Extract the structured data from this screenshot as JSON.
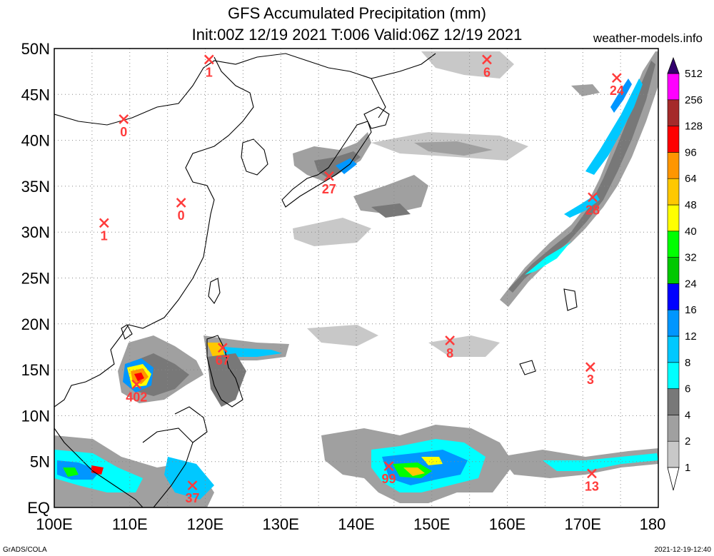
{
  "header": {
    "title": "GFS Accumulated Precipitation (mm)",
    "subtitle": "Init:00Z 12/19 2021 T:006 Valid:06Z 12/19 2021",
    "site": "weather-models.info"
  },
  "footer": {
    "left": "GrADS/COLA",
    "right": "2021-12-19-12:40"
  },
  "map": {
    "lat_labels": [
      "50N",
      "45N",
      "40N",
      "35N",
      "30N",
      "25N",
      "20N",
      "15N",
      "10N",
      "5N",
      "EQ"
    ],
    "lon_labels": [
      "100E",
      "110E",
      "120E",
      "130E",
      "140E",
      "150E",
      "160E",
      "170E",
      "180"
    ],
    "extent": {
      "lon_min": 100,
      "lon_max": 180,
      "lat_min": 0,
      "lat_max": 50
    }
  },
  "legend": {
    "levels": [
      "1",
      "2",
      "4",
      "6",
      "8",
      "12",
      "16",
      "24",
      "32",
      "40",
      "48",
      "64",
      "96",
      "128",
      "256",
      "512"
    ],
    "colors": [
      "#c8c8c8",
      "#a0a0a0",
      "#787878",
      "#00ffff",
      "#00c8ff",
      "#0096ff",
      "#0000ff",
      "#00c800",
      "#00ff00",
      "#ffff00",
      "#ffc800",
      "#ff9600",
      "#ff0000",
      "#a52a2a",
      "#ff00ff",
      "#c800ff",
      "#9600c8",
      "#64009a",
      "#32006e"
    ]
  },
  "markers": [
    {
      "lon": 120.5,
      "lat": 48.8,
      "value": "1"
    },
    {
      "lon": 157.3,
      "lat": 48.8,
      "value": "6"
    },
    {
      "lon": 174.5,
      "lat": 46.8,
      "value": "24"
    },
    {
      "lon": 109.2,
      "lat": 42.3,
      "value": "0"
    },
    {
      "lon": 136.4,
      "lat": 36.1,
      "value": "27"
    },
    {
      "lon": 171.3,
      "lat": 33.8,
      "value": "28"
    },
    {
      "lon": 116.8,
      "lat": 33.2,
      "value": "0"
    },
    {
      "lon": 106.6,
      "lat": 31.0,
      "value": "1"
    },
    {
      "lon": 152.4,
      "lat": 18.2,
      "value": "8"
    },
    {
      "lon": 122.3,
      "lat": 17.4,
      "value": "67"
    },
    {
      "lon": 171.0,
      "lat": 15.3,
      "value": "3"
    },
    {
      "lon": 110.9,
      "lat": 13.4,
      "value": "402"
    },
    {
      "lon": 144.3,
      "lat": 4.5,
      "value": "99"
    },
    {
      "lon": 171.2,
      "lat": 3.7,
      "value": "13"
    },
    {
      "lon": 118.3,
      "lat": 2.4,
      "value": "37"
    }
  ]
}
